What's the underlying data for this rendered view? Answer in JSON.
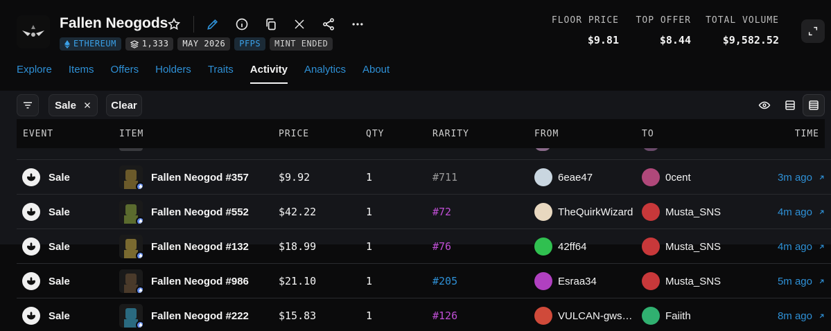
{
  "collection": {
    "name": "Fallen Neogods",
    "badges": [
      {
        "label": "ETHEREUM",
        "icon": "eth-diamond-icon",
        "style": "eth"
      },
      {
        "label": "1,333",
        "icon": "stack-icon",
        "style": "grey"
      },
      {
        "label": "MAY 2026",
        "style": "grey"
      },
      {
        "label": "PFPS",
        "style": "pfp"
      },
      {
        "label": "MINT ENDED",
        "style": "mint"
      }
    ]
  },
  "stats": {
    "floor": {
      "label": "FLOOR PRICE",
      "value": "$9.81"
    },
    "offer": {
      "label": "TOP OFFER",
      "value": "$8.44"
    },
    "volume": {
      "label": "TOTAL VOLUME",
      "value": "$9,582.52"
    }
  },
  "tabs": [
    {
      "label": "Explore"
    },
    {
      "label": "Items"
    },
    {
      "label": "Offers"
    },
    {
      "label": "Holders"
    },
    {
      "label": "Traits"
    },
    {
      "label": "Activity",
      "active": true
    },
    {
      "label": "Analytics"
    },
    {
      "label": "About"
    }
  ],
  "toolbar": {
    "filter_chip": "Sale",
    "clear_label": "Clear"
  },
  "table": {
    "headers": {
      "event": "EVENT",
      "item": "ITEM",
      "price": "PRICE",
      "qty": "QTY",
      "rarity": "RARITY",
      "from": "FROM",
      "to": "TO",
      "time": "TIME"
    },
    "rows": [
      {
        "event": "Sale",
        "item": "Fallen Neogod #357",
        "price": "$9.92",
        "qty": "1",
        "rarity": "#711",
        "rarity_color": "#9a9a9a",
        "from": "6eae47",
        "to": "0cent",
        "time": "3m ago",
        "thumb": "#6b5a2a",
        "from_av": "#c9d6e0",
        "to_av": "#b0487a"
      },
      {
        "event": "Sale",
        "item": "Fallen Neogod #552",
        "price": "$42.22",
        "qty": "1",
        "rarity": "#72",
        "rarity_color": "#c04fd6",
        "from": "TheQuirkWizard",
        "to": "Musta_SNS",
        "time": "4m ago",
        "thumb": "#5b6b2e",
        "from_av": "#e8d8c0",
        "to_av": "#c8383a"
      },
      {
        "event": "Sale",
        "item": "Fallen Neogod #132",
        "price": "$18.99",
        "qty": "1",
        "rarity": "#76",
        "rarity_color": "#c04fd6",
        "from": "42ff64",
        "to": "Musta_SNS",
        "time": "4m ago",
        "thumb": "#7a6a30",
        "from_av": "#30c050",
        "to_av": "#c8383a"
      },
      {
        "event": "Sale",
        "item": "Fallen Neogod #986",
        "price": "$21.10",
        "qty": "1",
        "rarity": "#205",
        "rarity_color": "#2e90d6",
        "from": "Esraa34",
        "to": "Musta_SNS",
        "time": "5m ago",
        "thumb": "#4a3a2a",
        "from_av": "#b040c0",
        "to_av": "#c8383a"
      },
      {
        "event": "Sale",
        "item": "Fallen Neogod #222",
        "price": "$15.83",
        "qty": "1",
        "rarity": "#126",
        "rarity_color": "#c04fd6",
        "from": "VULCAN-gwsfi…",
        "to": "Faiith",
        "time": "8m ago",
        "thumb": "#2a6a80",
        "from_av": "#d04a3a",
        "to_av": "#30b070"
      }
    ]
  }
}
